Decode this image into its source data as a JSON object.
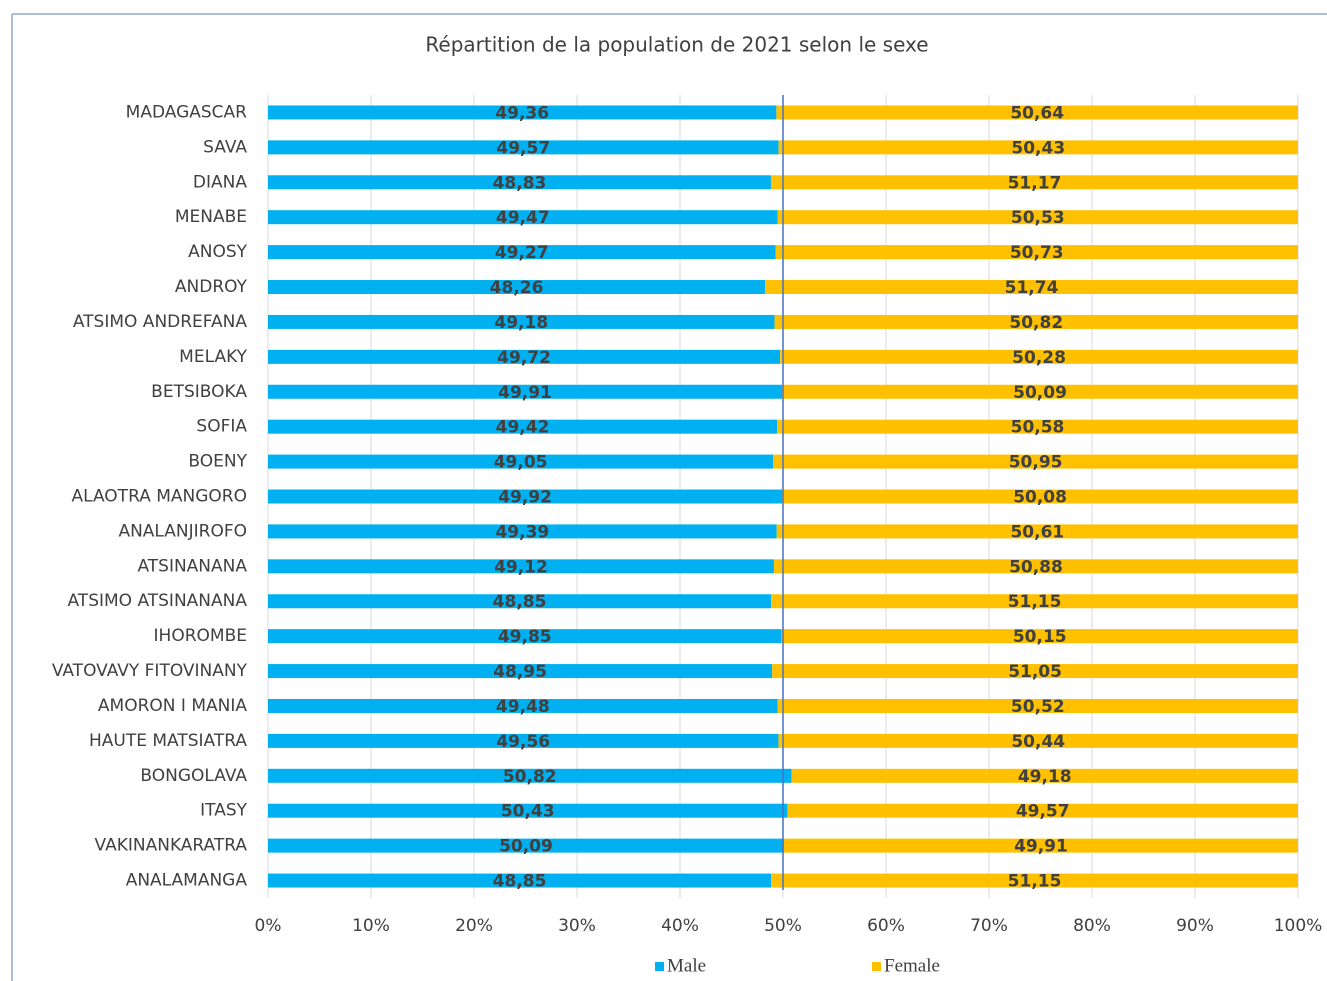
{
  "chart_data": {
    "type": "stacked_barh",
    "title": "Répartition de la population de 2021 selon le sexe",
    "categories": [
      "MADAGASCAR",
      "SAVA",
      "DIANA",
      "MENABE",
      "ANOSY",
      "ANDROY",
      "ATSIMO ANDREFANA",
      "MELAKY",
      "BETSIBOKA",
      "SOFIA",
      "BOENY",
      "ALAOTRA MANGORO",
      "ANALANJIROFO",
      "ATSINANANA",
      "ATSIMO ATSINANANA",
      "IHOROMBE",
      "VATOVAVY FITOVINANY",
      "AMORON I MANIA",
      "HAUTE MATSIATRA",
      "BONGOLAVA",
      "ITASY",
      "VAKINANKARATRA",
      "ANALAMANGA"
    ],
    "series": [
      {
        "name": "Male",
        "color": "#00b0f0",
        "values": [
          49.36,
          49.57,
          48.83,
          49.47,
          49.27,
          48.26,
          49.18,
          49.72,
          49.91,
          49.42,
          49.05,
          49.92,
          49.39,
          49.12,
          48.85,
          49.85,
          48.95,
          49.48,
          49.56,
          50.82,
          50.43,
          50.09,
          48.85
        ],
        "value_labels": [
          "49,36",
          "49,57",
          "48,83",
          "49,47",
          "49,27",
          "48,26",
          "49,18",
          "49,72",
          "49,91",
          "49,42",
          "49,05",
          "49,92",
          "49,39",
          "49,12",
          "48,85",
          "49,85",
          "48,95",
          "49,48",
          "49,56",
          "50,82",
          "50,43",
          "50,09",
          "48,85"
        ]
      },
      {
        "name": "Female",
        "color": "#ffc000",
        "values": [
          50.64,
          50.43,
          51.17,
          50.53,
          50.73,
          51.74,
          50.82,
          50.28,
          50.09,
          50.58,
          50.95,
          50.08,
          50.61,
          50.88,
          51.15,
          50.15,
          51.05,
          50.52,
          50.44,
          49.18,
          49.57,
          49.91,
          51.15
        ],
        "value_labels": [
          "50,64",
          "50,43",
          "51,17",
          "50,53",
          "50,73",
          "51,74",
          "50,82",
          "50,28",
          "50,09",
          "50,58",
          "50,95",
          "50,08",
          "50,61",
          "50,88",
          "51,15",
          "50,15",
          "51,05",
          "50,52",
          "50,44",
          "49,18",
          "49,57",
          "49,91",
          "51,15"
        ]
      }
    ],
    "xlim": [
      0,
      100
    ],
    "xticks": [
      {
        "value": 0,
        "label": "0%"
      },
      {
        "value": 10,
        "label": "10%"
      },
      {
        "value": 20,
        "label": "20%"
      },
      {
        "value": 30,
        "label": "30%"
      },
      {
        "value": 40,
        "label": "40%"
      },
      {
        "value": 50,
        "label": "50%"
      },
      {
        "value": 60,
        "label": "60%"
      },
      {
        "value": 70,
        "label": "70%"
      },
      {
        "value": 80,
        "label": "80%"
      },
      {
        "value": 90,
        "label": "90%"
      },
      {
        "value": 100,
        "label": "100%"
      }
    ],
    "reference_line": 50,
    "reference_color": "#4472c4",
    "grid": true,
    "legend": "bottom"
  }
}
